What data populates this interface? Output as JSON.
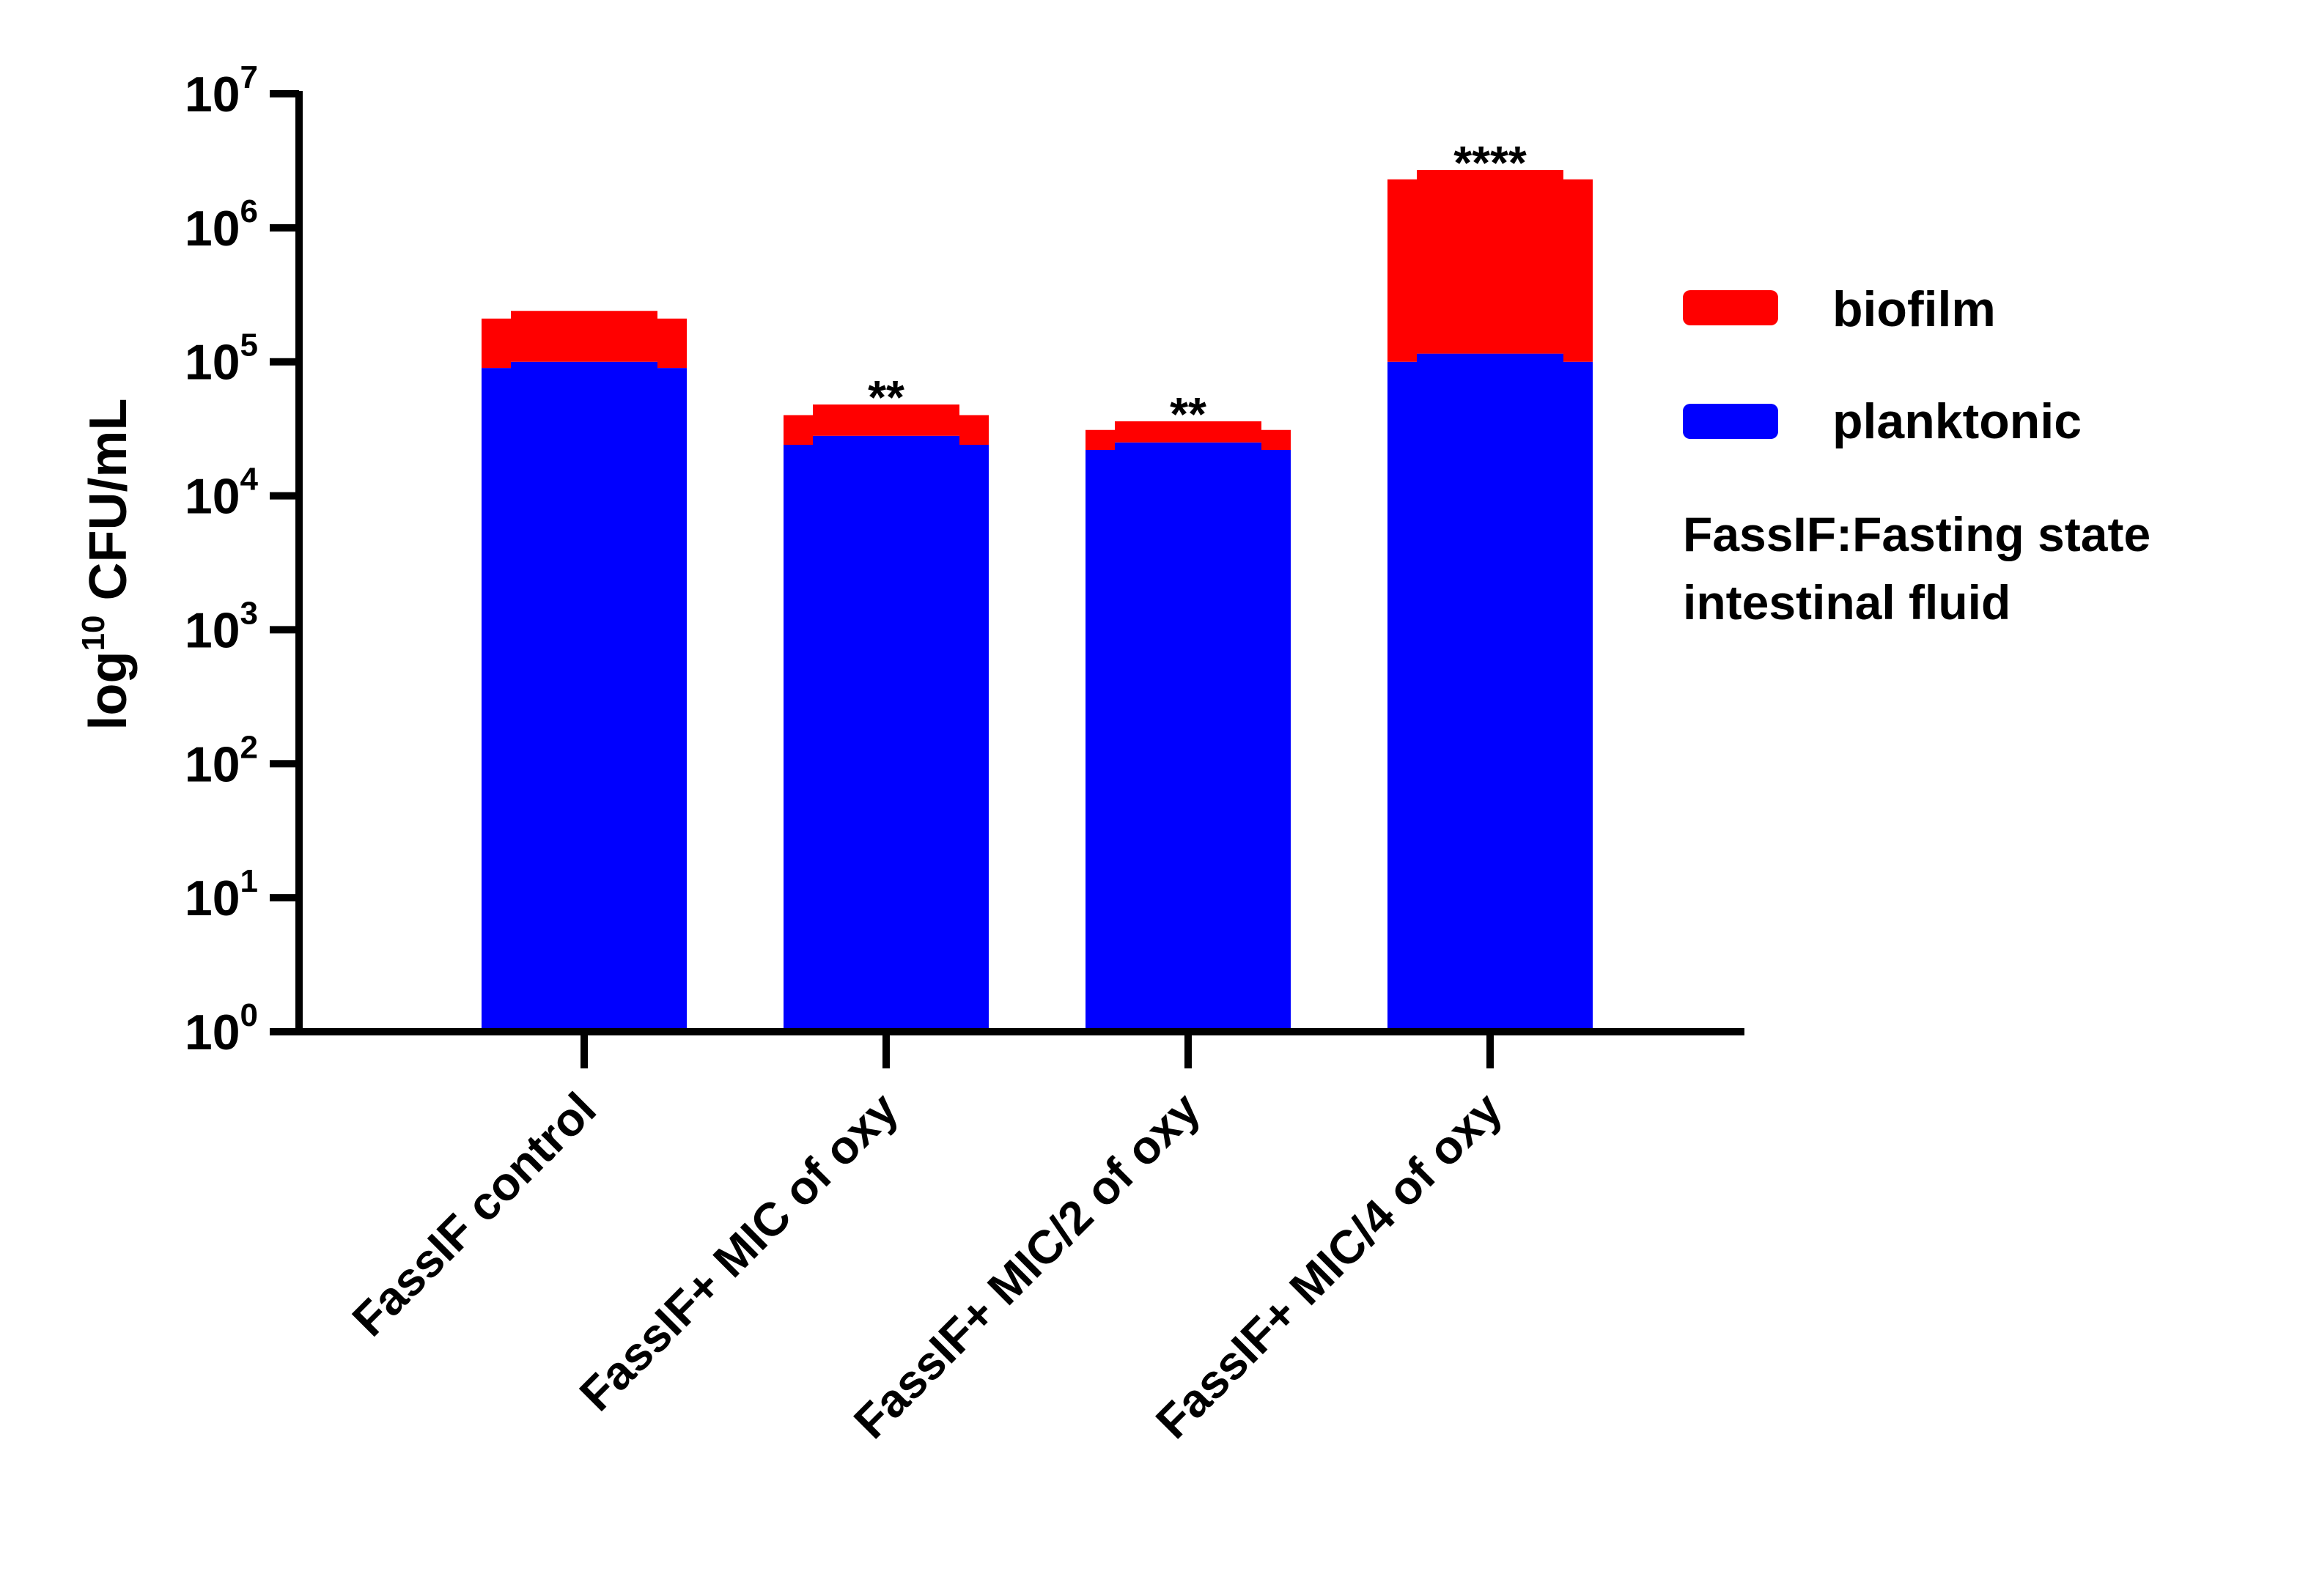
{
  "chart_data": {
    "type": "bar",
    "stacked": true,
    "y_scale": "log10",
    "ylim": [
      1,
      10000000
    ],
    "ylabel": {
      "prefix": "log",
      "superscript": "10",
      "suffix": " CFU/mL"
    },
    "y_ticks": [
      {
        "base": "10",
        "exp": "0"
      },
      {
        "base": "10",
        "exp": "1"
      },
      {
        "base": "10",
        "exp": "2"
      },
      {
        "base": "10",
        "exp": "3"
      },
      {
        "base": "10",
        "exp": "4"
      },
      {
        "base": "10",
        "exp": "5"
      },
      {
        "base": "10",
        "exp": "6"
      },
      {
        "base": "10",
        "exp": "7"
      }
    ],
    "categories": [
      "FassIF control",
      "FassIF+ MIC of oxy",
      "FassIF+ MIC/2 of oxy",
      "FassIF+ MIC/4 of oxy"
    ],
    "series": [
      {
        "name": "planktonic",
        "color": "#0000ff",
        "totals": [
          90000,
          24000,
          22000,
          100000
        ],
        "center_totals": [
          100000,
          28000,
          25000,
          115000
        ]
      },
      {
        "name": "biofilm",
        "color": "#ff0000",
        "totals": [
          210000,
          40000,
          31000,
          2300000
        ],
        "center_totals": [
          240000,
          48000,
          36000,
          2700000
        ]
      }
    ],
    "significance": [
      "",
      "**",
      "**",
      "****"
    ],
    "legend_position": "right",
    "annotation": [
      "FassIF:Fasting state",
      "intestinal fluid"
    ]
  }
}
